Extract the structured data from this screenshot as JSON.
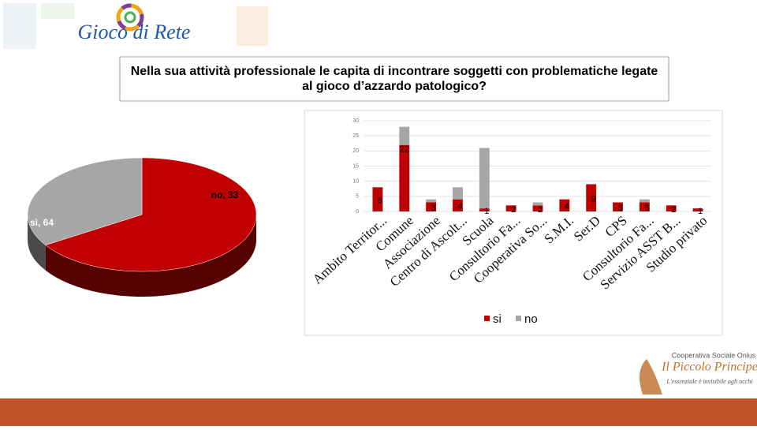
{
  "header": {
    "logo_text": "Gioco di Rete"
  },
  "question": "Nella sua attività professionale le capita di incontrare soggetti con problematiche legate al gioco d’azzardo patologico?",
  "footer": {
    "org_type": "Cooperativa Sociale Onlus",
    "org_name": "Il Piccolo Principe",
    "motto": "L'essenziale è invisibile agli occhi"
  },
  "chart_data": [
    {
      "type": "pie",
      "values": [
        64,
        33
      ],
      "value_labels": [
        "sì, 64",
        "no, 33"
      ],
      "colors": [
        "#c00000",
        "#a6a6a6"
      ]
    },
    {
      "type": "bar",
      "stacked": true,
      "categories": [
        "Ambito Territor...",
        "Comune",
        "Associazione",
        "Centro di Ascolt...",
        "Scuola",
        "Consultorio Fa...",
        "Cooperativa So...",
        "S.M.I.",
        "Ser.D",
        "CPS",
        "Consultorio Fa...",
        "Servizio ASST B...",
        "Studio privato"
      ],
      "series": [
        {
          "name": "si",
          "color": "#c00000",
          "values": [
            8,
            22,
            3,
            4,
            1,
            2,
            2,
            4,
            9,
            3,
            3,
            2,
            1
          ]
        },
        {
          "name": "no",
          "color": "#a6a6a6",
          "values": [
            0,
            6,
            1,
            4,
            20,
            0,
            1,
            0,
            0,
            0,
            1,
            0,
            0
          ]
        }
      ],
      "ylim": [
        0,
        30
      ],
      "yticks": [
        0,
        5,
        10,
        15,
        20,
        25,
        30
      ],
      "grid": true,
      "legend": "bottom"
    }
  ]
}
